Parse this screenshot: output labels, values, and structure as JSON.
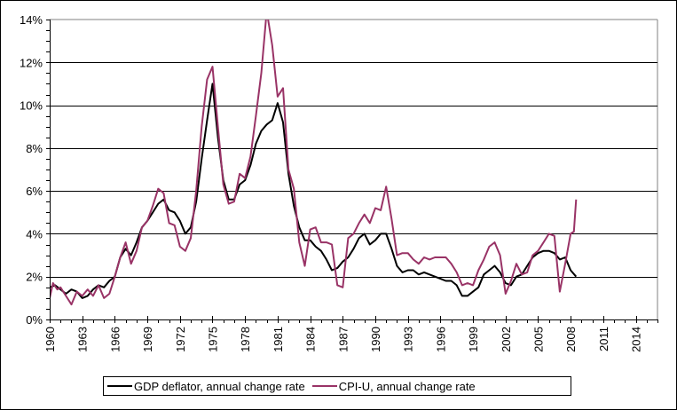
{
  "chart_data": {
    "type": "line",
    "title": "",
    "xlabel": "",
    "ylabel": "",
    "xlim": [
      1960,
      2016
    ],
    "ylim": [
      0,
      14
    ],
    "y_ticks": [
      0,
      2,
      4,
      6,
      8,
      10,
      12,
      14
    ],
    "y_tick_labels": [
      "0%",
      "2%",
      "4%",
      "6%",
      "8%",
      "10%",
      "12%",
      "14%"
    ],
    "x_ticks": [
      1960,
      1963,
      1966,
      1969,
      1972,
      1975,
      1978,
      1981,
      1984,
      1987,
      1990,
      1993,
      1996,
      1999,
      2002,
      2005,
      2008,
      2011,
      2014
    ],
    "x_tick_labels": [
      "1960",
      "1963",
      "1966",
      "1969",
      "1972",
      "1975",
      "1978",
      "1981",
      "1984",
      "1987",
      "1990",
      "1993",
      "1996",
      "1999",
      "2002",
      "2005",
      "2008",
      "2011",
      "2014"
    ],
    "grid": "horizontal",
    "legend_position": "bottom",
    "series": [
      {
        "name": "GDP deflator, annual change rate",
        "color": "#000000",
        "x": [
          1960,
          1960.5,
          1961,
          1961.5,
          1962,
          1962.5,
          1963,
          1963.5,
          1964,
          1964.5,
          1965,
          1965.5,
          1966,
          1966.5,
          1967,
          1967.5,
          1968,
          1968.5,
          1969,
          1969.5,
          1970,
          1970.5,
          1971,
          1971.5,
          1972,
          1972.5,
          1973,
          1973.5,
          1974,
          1974.5,
          1975,
          1975.5,
          1976,
          1976.5,
          1977,
          1977.5,
          1978,
          1978.5,
          1979,
          1979.5,
          1980,
          1980.5,
          1981,
          1981.5,
          1982,
          1982.5,
          1983,
          1983.5,
          1984,
          1984.5,
          1985,
          1985.5,
          1986,
          1986.5,
          1987,
          1987.5,
          1988,
          1988.5,
          1989,
          1989.5,
          1990,
          1990.5,
          1991,
          1991.5,
          1992,
          1992.5,
          1993,
          1993.5,
          1994,
          1994.5,
          1995,
          1995.5,
          1996,
          1996.5,
          1997,
          1997.5,
          1998,
          1998.5,
          1999,
          1999.5,
          2000,
          2000.5,
          2001,
          2001.5,
          2002,
          2002.5,
          2003,
          2003.5,
          2004,
          2004.5,
          2005,
          2005.5,
          2006,
          2006.5,
          2007,
          2007.5,
          2008,
          2008.5
        ],
        "values": [
          1.5,
          1.6,
          1.4,
          1.2,
          1.4,
          1.3,
          1.0,
          1.1,
          1.4,
          1.6,
          1.5,
          1.8,
          2.0,
          2.9,
          3.3,
          3.0,
          3.6,
          4.3,
          4.6,
          5.0,
          5.4,
          5.6,
          5.1,
          5.0,
          4.6,
          4.0,
          4.3,
          5.5,
          7.5,
          9.3,
          11.0,
          8.5,
          6.5,
          5.6,
          5.6,
          6.3,
          6.5,
          7.2,
          8.2,
          8.8,
          9.1,
          9.3,
          10.1,
          9.2,
          6.8,
          5.3,
          4.3,
          3.7,
          3.7,
          3.4,
          3.2,
          2.8,
          2.3,
          2.4,
          2.7,
          2.9,
          3.3,
          3.8,
          4.0,
          3.5,
          3.7,
          4.0,
          4.0,
          3.3,
          2.5,
          2.2,
          2.3,
          2.3,
          2.1,
          2.2,
          2.1,
          2.0,
          1.9,
          1.8,
          1.8,
          1.6,
          1.1,
          1.1,
          1.3,
          1.5,
          2.1,
          2.3,
          2.5,
          2.2,
          1.7,
          1.6,
          2.0,
          2.1,
          2.5,
          2.9,
          3.1,
          3.2,
          3.2,
          3.1,
          2.8,
          2.9,
          2.3,
          2.0
        ]
      },
      {
        "name": "CPI-U, annual change rate",
        "color": "#993366",
        "x": [
          1960,
          1960.3,
          1960.7,
          1961,
          1961.5,
          1962,
          1962.5,
          1963,
          1963.5,
          1964,
          1964.5,
          1965,
          1965.5,
          1966,
          1966.5,
          1967,
          1967.5,
          1968,
          1968.5,
          1969,
          1969.5,
          1970,
          1970.5,
          1971,
          1971.5,
          1972,
          1972.5,
          1973,
          1973.5,
          1974,
          1974.5,
          1975,
          1975.5,
          1976,
          1976.5,
          1977,
          1977.5,
          1978,
          1978.5,
          1979,
          1979.5,
          1980,
          1980.5,
          1981,
          1981.5,
          1982,
          1982.5,
          1983,
          1983.5,
          1984,
          1984.5,
          1985,
          1985.5,
          1986,
          1986.5,
          1987,
          1987.5,
          1988,
          1988.5,
          1989,
          1989.5,
          1990,
          1990.5,
          1991,
          1991.5,
          1992,
          1992.5,
          1993,
          1993.5,
          1994,
          1994.5,
          1995,
          1995.5,
          1996,
          1996.5,
          1997,
          1997.5,
          1998,
          1998.5,
          1999,
          1999.5,
          2000,
          2000.5,
          2001,
          2001.5,
          2002,
          2002.5,
          2003,
          2003.5,
          2004,
          2004.5,
          2005,
          2005.5,
          2006,
          2006.5,
          2007,
          2007.5,
          2008,
          2008.3,
          2008.5
        ],
        "values": [
          1.0,
          1.7,
          1.4,
          1.5,
          1.1,
          0.7,
          1.3,
          1.1,
          1.4,
          1.1,
          1.6,
          1.0,
          1.2,
          2.0,
          2.9,
          3.6,
          2.6,
          3.2,
          4.3,
          4.6,
          5.3,
          6.1,
          5.9,
          4.5,
          4.4,
          3.4,
          3.2,
          3.8,
          6.0,
          9.0,
          11.2,
          11.8,
          9.0,
          6.3,
          5.4,
          5.5,
          6.8,
          6.6,
          7.6,
          9.5,
          11.5,
          14.4,
          12.8,
          10.4,
          10.8,
          7.0,
          6.1,
          3.6,
          2.5,
          4.2,
          4.3,
          3.6,
          3.6,
          3.5,
          1.6,
          1.5,
          3.8,
          4.0,
          4.5,
          4.9,
          4.5,
          5.2,
          5.1,
          6.2,
          4.7,
          3.0,
          3.1,
          3.1,
          2.8,
          2.6,
          2.9,
          2.8,
          2.9,
          2.9,
          2.9,
          2.6,
          2.2,
          1.6,
          1.7,
          1.6,
          2.3,
          2.8,
          3.4,
          3.6,
          3.0,
          1.2,
          1.8,
          2.6,
          2.1,
          2.2,
          3.0,
          3.2,
          3.6,
          4.0,
          3.9,
          1.3,
          2.6,
          4.0,
          4.1,
          5.6
        ]
      }
    ]
  },
  "legend": {
    "items": [
      {
        "label": "GDP deflator, annual change rate",
        "color": "#000000"
      },
      {
        "label": "CPI-U, annual change rate",
        "color": "#993366"
      }
    ]
  }
}
